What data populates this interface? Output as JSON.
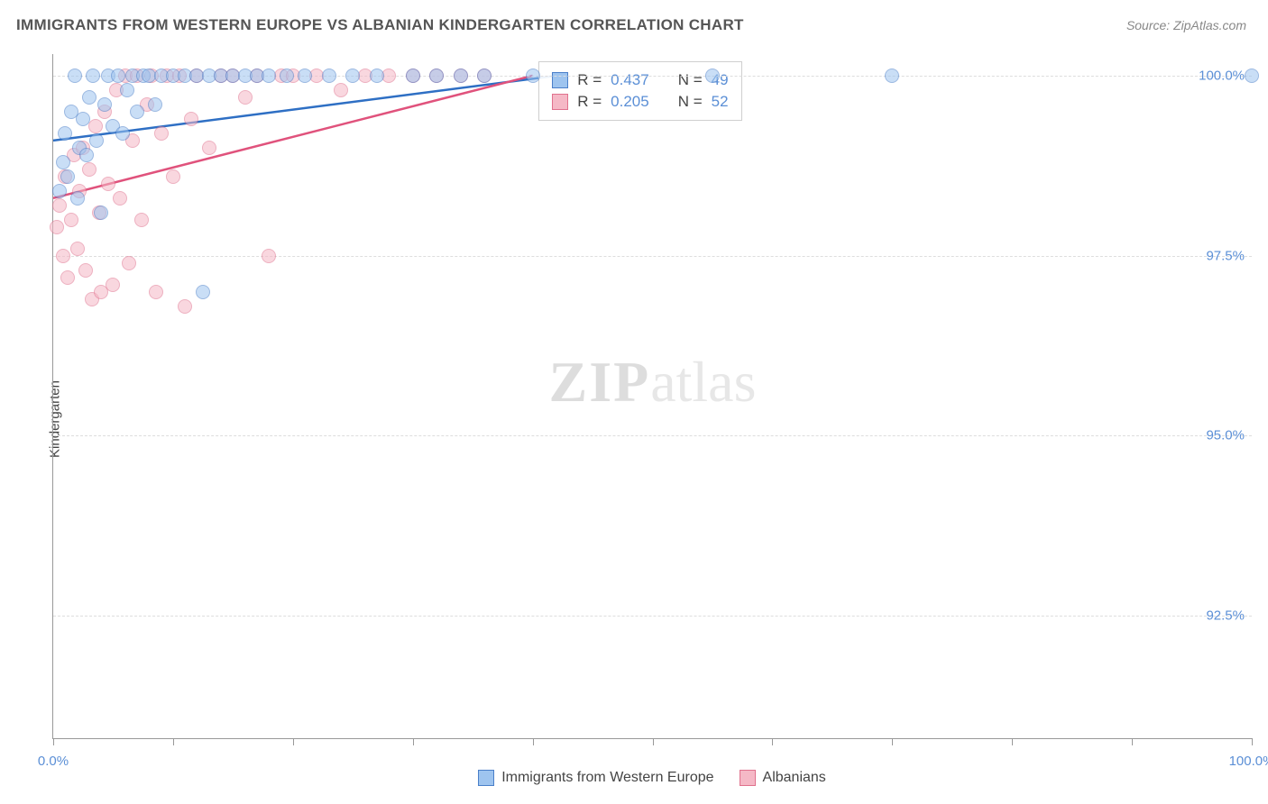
{
  "header": {
    "title": "IMMIGRANTS FROM WESTERN EUROPE VS ALBANIAN KINDERGARTEN CORRELATION CHART",
    "source": "Source: ZipAtlas.com"
  },
  "watermark": {
    "bold": "ZIP",
    "light": "atlas"
  },
  "chart": {
    "type": "scatter",
    "ylabel": "Kindergarten",
    "background_color": "#ffffff",
    "grid_color": "#dddddd",
    "axis_color": "#999999",
    "tick_label_color": "#5b8fd6",
    "xlim": [
      0,
      100
    ],
    "ylim": [
      90.8,
      100.3
    ],
    "xticks": [
      0,
      10,
      20,
      30,
      40,
      50,
      60,
      70,
      80,
      90,
      100
    ],
    "xtick_labels_shown": {
      "0": "0.0%",
      "100": "100.0%"
    },
    "yticks": [
      92.5,
      95.0,
      97.5,
      100.0
    ],
    "ytick_labels": [
      "92.5%",
      "95.0%",
      "97.5%",
      "100.0%"
    ],
    "marker_radius": 8,
    "marker_opacity": 0.55,
    "series": [
      {
        "name": "Immigrants from Western Europe",
        "fill": "#9ec4ef",
        "stroke": "#4a7fc9",
        "line_color": "#2e6fc4",
        "line_width": 2.5,
        "trend": {
          "x1": 0,
          "y1": 99.1,
          "x2": 42,
          "y2": 100.0
        },
        "stats": {
          "R": "0.437",
          "N": "49"
        },
        "points": [
          [
            0.5,
            98.4
          ],
          [
            0.8,
            98.8
          ],
          [
            1.0,
            99.2
          ],
          [
            1.2,
            98.6
          ],
          [
            1.5,
            99.5
          ],
          [
            1.8,
            100.0
          ],
          [
            2.0,
            98.3
          ],
          [
            2.2,
            99.0
          ],
          [
            2.5,
            99.4
          ],
          [
            2.8,
            98.9
          ],
          [
            3.0,
            99.7
          ],
          [
            3.3,
            100.0
          ],
          [
            3.6,
            99.1
          ],
          [
            4.0,
            98.1
          ],
          [
            4.3,
            99.6
          ],
          [
            4.6,
            100.0
          ],
          [
            5.0,
            99.3
          ],
          [
            5.4,
            100.0
          ],
          [
            5.8,
            99.2
          ],
          [
            6.2,
            99.8
          ],
          [
            6.6,
            100.0
          ],
          [
            7.0,
            99.5
          ],
          [
            7.5,
            100.0
          ],
          [
            8.0,
            100.0
          ],
          [
            8.5,
            99.6
          ],
          [
            9.0,
            100.0
          ],
          [
            10.0,
            100.0
          ],
          [
            11.0,
            100.0
          ],
          [
            12.0,
            100.0
          ],
          [
            12.5,
            97.0
          ],
          [
            13.0,
            100.0
          ],
          [
            14.0,
            100.0
          ],
          [
            15.0,
            100.0
          ],
          [
            16.0,
            100.0
          ],
          [
            17.0,
            100.0
          ],
          [
            18.0,
            100.0
          ],
          [
            19.5,
            100.0
          ],
          [
            21.0,
            100.0
          ],
          [
            23.0,
            100.0
          ],
          [
            25.0,
            100.0
          ],
          [
            27.0,
            100.0
          ],
          [
            30.0,
            100.0
          ],
          [
            32.0,
            100.0
          ],
          [
            34.0,
            100.0
          ],
          [
            36.0,
            100.0
          ],
          [
            40.0,
            100.0
          ],
          [
            55.0,
            100.0
          ],
          [
            70.0,
            100.0
          ],
          [
            100.0,
            100.0
          ]
        ]
      },
      {
        "name": "Albanians",
        "fill": "#f5b8c6",
        "stroke": "#e0718d",
        "line_color": "#e0527c",
        "line_width": 2.5,
        "trend": {
          "x1": 0,
          "y1": 98.3,
          "x2": 40,
          "y2": 100.0
        },
        "stats": {
          "R": "0.205",
          "N": "52"
        },
        "points": [
          [
            0.3,
            97.9
          ],
          [
            0.5,
            98.2
          ],
          [
            0.8,
            97.5
          ],
          [
            1.0,
            98.6
          ],
          [
            1.2,
            97.2
          ],
          [
            1.5,
            98.0
          ],
          [
            1.7,
            98.9
          ],
          [
            2.0,
            97.6
          ],
          [
            2.2,
            98.4
          ],
          [
            2.5,
            99.0
          ],
          [
            2.7,
            97.3
          ],
          [
            3.0,
            98.7
          ],
          [
            3.2,
            96.9
          ],
          [
            3.5,
            99.3
          ],
          [
            3.8,
            98.1
          ],
          [
            4.0,
            97.0
          ],
          [
            4.3,
            99.5
          ],
          [
            4.6,
            98.5
          ],
          [
            5.0,
            97.1
          ],
          [
            5.3,
            99.8
          ],
          [
            5.6,
            98.3
          ],
          [
            6.0,
            100.0
          ],
          [
            6.3,
            97.4
          ],
          [
            6.6,
            99.1
          ],
          [
            7.0,
            100.0
          ],
          [
            7.4,
            98.0
          ],
          [
            7.8,
            99.6
          ],
          [
            8.2,
            100.0
          ],
          [
            8.6,
            97.0
          ],
          [
            9.0,
            99.2
          ],
          [
            9.5,
            100.0
          ],
          [
            10.0,
            98.6
          ],
          [
            10.5,
            100.0
          ],
          [
            11.0,
            96.8
          ],
          [
            11.5,
            99.4
          ],
          [
            12.0,
            100.0
          ],
          [
            13.0,
            99.0
          ],
          [
            14.0,
            100.0
          ],
          [
            15.0,
            100.0
          ],
          [
            16.0,
            99.7
          ],
          [
            17.0,
            100.0
          ],
          [
            18.0,
            97.5
          ],
          [
            19.0,
            100.0
          ],
          [
            20.0,
            100.0
          ],
          [
            22.0,
            100.0
          ],
          [
            24.0,
            99.8
          ],
          [
            26.0,
            100.0
          ],
          [
            28.0,
            100.0
          ],
          [
            30.0,
            100.0
          ],
          [
            32.0,
            100.0
          ],
          [
            34.0,
            100.0
          ],
          [
            36.0,
            100.0
          ]
        ]
      }
    ],
    "stat_box": {
      "left_pct": 40.5,
      "top_pct": 1.0
    },
    "legend": {
      "items": [
        {
          "label": "Immigrants from Western Europe",
          "fill": "#9ec4ef",
          "stroke": "#4a7fc9"
        },
        {
          "label": "Albanians",
          "fill": "#f5b8c6",
          "stroke": "#e0718d"
        }
      ]
    }
  }
}
